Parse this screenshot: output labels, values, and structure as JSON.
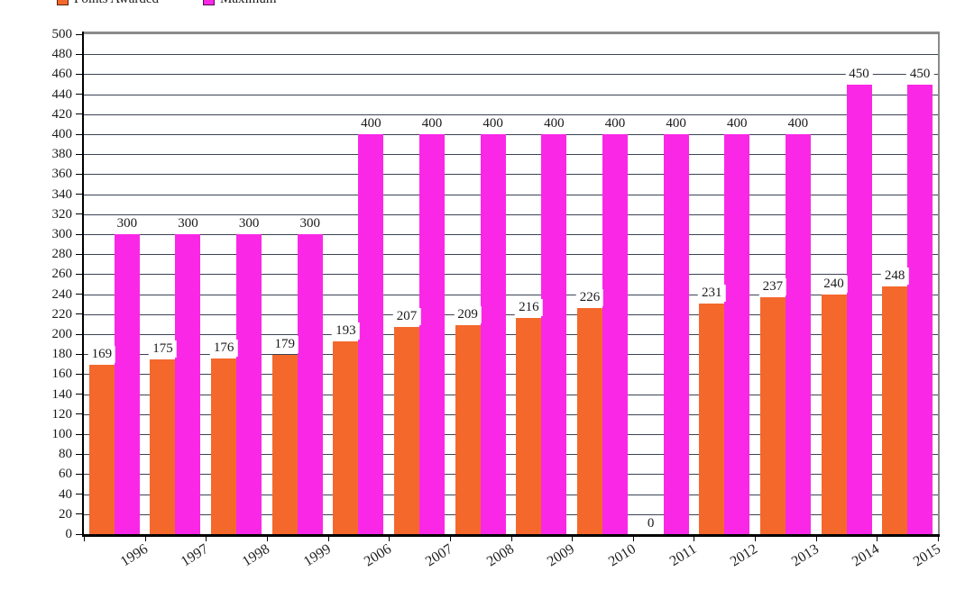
{
  "chart_data": {
    "type": "bar",
    "title": "",
    "xlabel": "",
    "ylabel": "",
    "categories": [
      "1996",
      "1997",
      "1998",
      "1999",
      "2006",
      "2007",
      "2008",
      "2009",
      "2010",
      "2011",
      "2012",
      "2013",
      "2014",
      "2015"
    ],
    "series": [
      {
        "name": "Points Awarded",
        "color": "#f4682c",
        "values": [
          169,
          175,
          176,
          179,
          193,
          207,
          209,
          216,
          226,
          0,
          231,
          237,
          240,
          248
        ]
      },
      {
        "name": "Maximum",
        "color": "#fa28e6",
        "values": [
          300,
          300,
          300,
          300,
          400,
          400,
          400,
          400,
          400,
          400,
          400,
          400,
          450,
          450
        ]
      }
    ],
    "ylim": [
      0,
      500
    ],
    "y_step": 20,
    "y_ticks": [
      0,
      20,
      40,
      60,
      80,
      100,
      120,
      140,
      160,
      180,
      200,
      220,
      240,
      260,
      280,
      300,
      320,
      340,
      360,
      380,
      400,
      420,
      440,
      460,
      480,
      500
    ],
    "grid": true,
    "value_labels": true,
    "legend_position": "top-left",
    "legend_entries": [
      "Points Awarded",
      "Maximum"
    ],
    "colors": {
      "gridline": "#3b4354",
      "plot_border_gray": "#8a8a8a",
      "axis_black": "#000000",
      "background": "#ffffff"
    }
  }
}
